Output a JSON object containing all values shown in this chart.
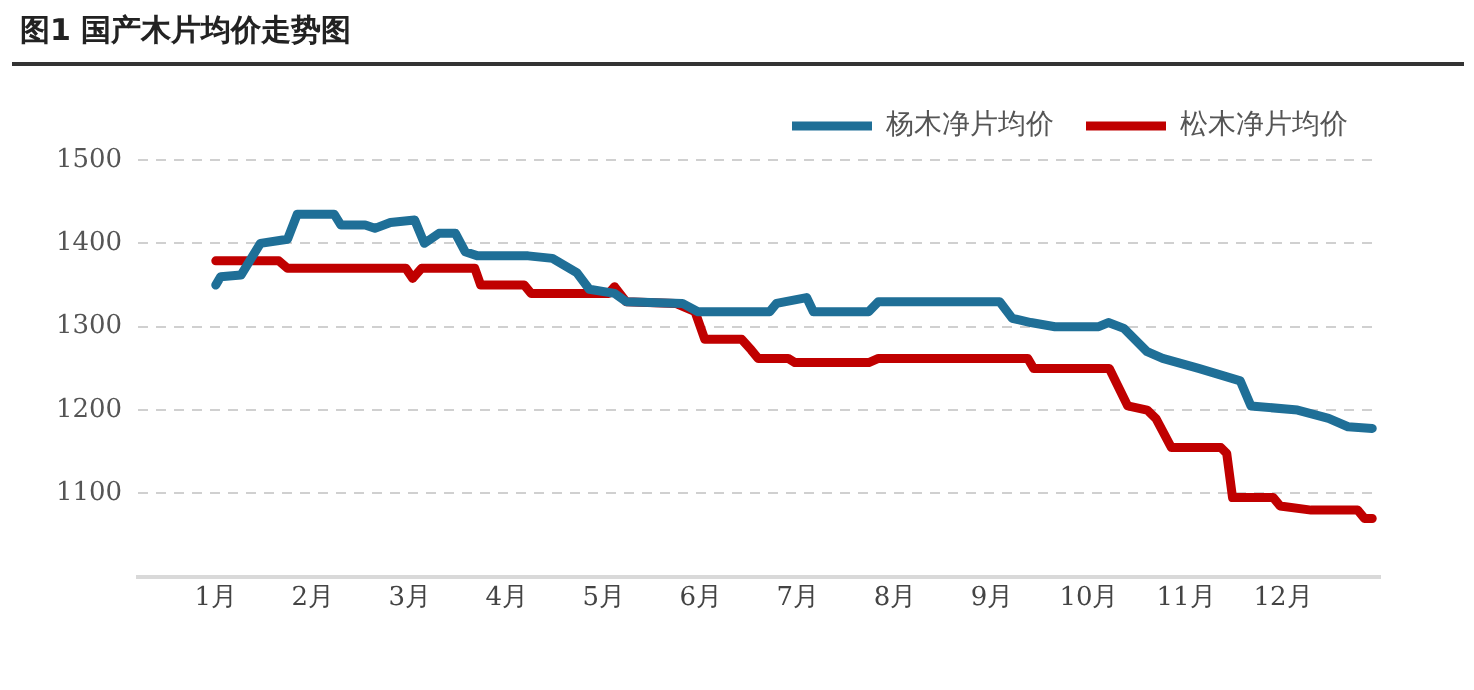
{
  "chart_data": {
    "type": "line",
    "title": "图1  国产木片均价走势图",
    "xlim": [
      0.2,
      13
    ],
    "xticks": [
      {
        "value": 1,
        "label": "1月"
      },
      {
        "value": 2,
        "label": "2月"
      },
      {
        "value": 3,
        "label": "3月"
      },
      {
        "value": 4,
        "label": "4月"
      },
      {
        "value": 5,
        "label": "5月"
      },
      {
        "value": 6,
        "label": "6月"
      },
      {
        "value": 7,
        "label": "7月"
      },
      {
        "value": 8,
        "label": "8月"
      },
      {
        "value": 9,
        "label": "9月"
      },
      {
        "value": 10,
        "label": "10月"
      },
      {
        "value": 11,
        "label": "11月"
      },
      {
        "value": 12,
        "label": "12月"
      }
    ],
    "ylim": [
      1000,
      1500
    ],
    "yticks": [
      {
        "value": 1000,
        "label": null
      },
      1100,
      1200,
      1300,
      1400,
      1500
    ],
    "grid": "y",
    "legend": "top right",
    "marker": "none",
    "line_style": "solid",
    "series": [
      {
        "name": "杨木净片均价",
        "color": "#1f6f97",
        "x": [
          1.0,
          1.05,
          1.26,
          1.46,
          1.74,
          1.84,
          2.22,
          2.29,
          2.54,
          2.64,
          2.8,
          3.05,
          3.15,
          3.3,
          3.47,
          3.57,
          3.7,
          4.22,
          4.47,
          4.72,
          4.85,
          5.11,
          5.23,
          5.81,
          5.97,
          6.71,
          6.78,
          7.09,
          7.16,
          7.73,
          7.83,
          8.1,
          9.08,
          9.21,
          9.4,
          9.65,
          10.1,
          10.2,
          10.36,
          10.6,
          10.76,
          11.13,
          11.56,
          11.67,
          12.15,
          12.47,
          12.67,
          12.92
        ],
        "values": [
          1350,
          1360,
          1362,
          1400,
          1405,
          1435,
          1435,
          1422,
          1422,
          1418,
          1425,
          1428,
          1400,
          1412,
          1412,
          1390,
          1385,
          1385,
          1382,
          1365,
          1345,
          1340,
          1330,
          1328,
          1318,
          1318,
          1328,
          1335,
          1318,
          1318,
          1330,
          1330,
          1330,
          1310,
          1305,
          1300,
          1300,
          1305,
          1298,
          1270,
          1262,
          1250,
          1235,
          1205,
          1200,
          1190,
          1180,
          1178
        ]
      },
      {
        "name": "松木净片均价",
        "color": "#c00000",
        "x": [
          1.0,
          1.65,
          1.74,
          2.96,
          3.03,
          3.12,
          3.67,
          3.73,
          4.18,
          4.25,
          5.05,
          5.11,
          5.23,
          5.74,
          5.94,
          6.04,
          6.42,
          6.52,
          6.59,
          6.9,
          6.97,
          7.73,
          7.83,
          9.37,
          9.43,
          10.21,
          10.4,
          10.6,
          10.69,
          10.85,
          11.36,
          11.42,
          11.48,
          11.9,
          11.97,
          12.29,
          12.77,
          12.84,
          12.92
        ],
        "values": [
          1379,
          1379,
          1370,
          1370,
          1358,
          1370,
          1370,
          1350,
          1350,
          1340,
          1340,
          1348,
          1330,
          1328,
          1318,
          1285,
          1285,
          1272,
          1262,
          1262,
          1257,
          1257,
          1262,
          1262,
          1250,
          1250,
          1205,
          1200,
          1190,
          1155,
          1155,
          1148,
          1095,
          1095,
          1085,
          1080,
          1080,
          1070,
          1070
        ]
      }
    ]
  }
}
